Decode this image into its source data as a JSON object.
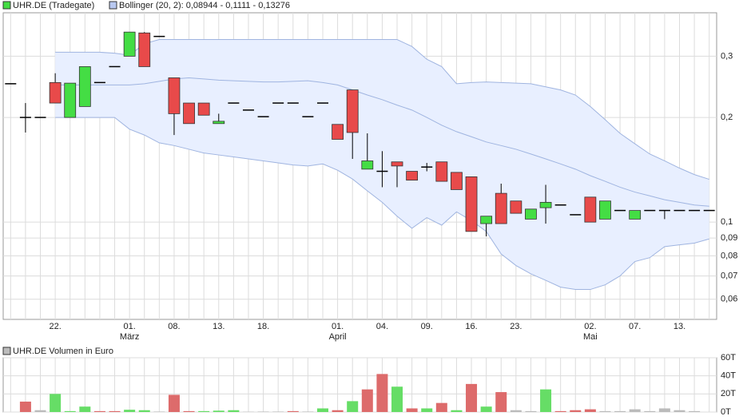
{
  "chart_data": {
    "type": "candlestick",
    "legend": [
      "UHR.DE (Tradegate)",
      "Bollinger (20, 2): 0,08944 - 0,1111 - 0,13276"
    ],
    "up_color": "#44dd44",
    "down_color": "#e84a4a",
    "flat_color": "#000000",
    "band_fill": "#e8efff",
    "band_color": "#9fb4e0",
    "log_scale": true,
    "grid": true,
    "categories": [
      null,
      null,
      null,
      "22.",
      null,
      null,
      null,
      null,
      "01.",
      null,
      null,
      "08.",
      null,
      null,
      "13.",
      null,
      null,
      "18.",
      null,
      null,
      null,
      null,
      "01.",
      null,
      null,
      "04.",
      null,
      null,
      "09.",
      null,
      null,
      "16.",
      null,
      null,
      "23.",
      null,
      null,
      null,
      null,
      "02.",
      null,
      null,
      "07.",
      null,
      null,
      "13.",
      null,
      null
    ],
    "months": [
      null,
      null,
      null,
      null,
      null,
      null,
      null,
      null,
      "März",
      null,
      null,
      null,
      null,
      null,
      null,
      null,
      null,
      null,
      null,
      null,
      null,
      null,
      "April",
      null,
      null,
      null,
      null,
      null,
      null,
      null,
      null,
      null,
      null,
      null,
      null,
      null,
      null,
      null,
      null,
      "Mai",
      null,
      null,
      null,
      null,
      null,
      null,
      null,
      null
    ],
    "open": [
      0.25,
      0.2,
      0.2,
      0.252,
      0.2,
      0.215,
      0.252,
      0.28,
      0.3,
      0.35,
      0.342,
      0.26,
      0.22,
      0.22,
      0.192,
      0.22,
      0.21,
      0.201,
      0.22,
      0.22,
      0.201,
      0.22,
      0.191,
      0.24,
      0.142,
      0.14,
      0.149,
      0.14,
      0.144,
      0.149,
      0.139,
      0.135,
      0.099,
      0.121,
      0.115,
      0.102,
      0.11,
      0.112,
      0.105,
      0.118,
      0.102,
      0.108,
      0.102,
      0.108,
      0.108,
      0.108,
      0.108,
      0.108
    ],
    "high": [
      0.25,
      0.22,
      0.2,
      0.268,
      0.251,
      0.28,
      0.252,
      0.28,
      0.352,
      0.352,
      0.342,
      0.26,
      0.22,
      0.22,
      0.205,
      0.22,
      0.21,
      0.201,
      0.22,
      0.22,
      0.201,
      0.22,
      0.191,
      0.24,
      0.18,
      0.16,
      0.149,
      0.14,
      0.148,
      0.149,
      0.139,
      0.135,
      0.104,
      0.129,
      0.115,
      0.109,
      0.128,
      0.112,
      0.105,
      0.118,
      0.115,
      0.108,
      0.108,
      0.108,
      0.108,
      0.108,
      0.108,
      0.108
    ],
    "low": [
      0.25,
      0.181,
      0.2,
      0.22,
      0.2,
      0.215,
      0.252,
      0.28,
      0.3,
      0.28,
      0.342,
      0.178,
      0.192,
      0.203,
      0.192,
      0.22,
      0.21,
      0.201,
      0.22,
      0.22,
      0.201,
      0.22,
      0.173,
      0.152,
      0.142,
      0.126,
      0.126,
      0.132,
      0.14,
      0.131,
      0.124,
      0.094,
      0.091,
      0.099,
      0.106,
      0.102,
      0.099,
      0.112,
      0.105,
      0.1,
      0.102,
      0.108,
      0.102,
      0.108,
      0.102,
      0.108,
      0.108,
      0.108
    ],
    "close": [
      0.25,
      0.2,
      0.2,
      0.22,
      0.251,
      0.28,
      0.252,
      0.28,
      0.352,
      0.28,
      0.342,
      0.205,
      0.192,
      0.203,
      0.195,
      0.22,
      0.21,
      0.201,
      0.22,
      0.22,
      0.201,
      0.22,
      0.173,
      0.181,
      0.15,
      0.14,
      0.145,
      0.132,
      0.144,
      0.131,
      0.124,
      0.094,
      0.104,
      0.099,
      0.106,
      0.109,
      0.114,
      0.112,
      0.105,
      0.1,
      0.115,
      0.108,
      0.108,
      0.108,
      0.108,
      0.108,
      0.108,
      0.108
    ],
    "band_upper": [
      null,
      null,
      null,
      0.308,
      0.308,
      0.308,
      0.308,
      0.306,
      0.302,
      0.326,
      0.335,
      0.335,
      0.335,
      0.335,
      0.335,
      0.335,
      0.335,
      0.335,
      0.335,
      0.335,
      0.335,
      0.335,
      0.335,
      0.335,
      0.335,
      0.335,
      0.335,
      0.32,
      0.294,
      0.28,
      0.25,
      0.252,
      0.253,
      0.252,
      0.251,
      0.25,
      0.245,
      0.24,
      0.232,
      0.215,
      0.197,
      0.18,
      0.168,
      0.157,
      0.15,
      0.143,
      0.137,
      0.13276
    ],
    "band_middle": [
      null,
      null,
      null,
      0.248,
      0.248,
      0.248,
      0.248,
      0.248,
      0.248,
      0.25,
      0.254,
      0.258,
      0.26,
      0.258,
      0.256,
      0.255,
      0.254,
      0.253,
      0.253,
      0.254,
      0.255,
      0.252,
      0.248,
      0.24,
      0.232,
      0.225,
      0.217,
      0.21,
      0.2,
      0.19,
      0.182,
      0.176,
      0.17,
      0.166,
      0.162,
      0.157,
      0.152,
      0.147,
      0.142,
      0.136,
      0.131,
      0.126,
      0.122,
      0.119,
      0.116,
      0.114,
      0.112,
      0.1111
    ],
    "band_lower": [
      null,
      null,
      null,
      0.2,
      0.2,
      0.2,
      0.2,
      0.2,
      0.185,
      0.178,
      0.169,
      0.166,
      0.162,
      0.158,
      0.156,
      0.154,
      0.152,
      0.15,
      0.148,
      0.146,
      0.145,
      0.147,
      0.141,
      0.133,
      0.123,
      0.114,
      0.104,
      0.096,
      0.103,
      0.098,
      0.107,
      0.101,
      0.094,
      0.081,
      0.075,
      0.071,
      0.068,
      0.065,
      0.064,
      0.064,
      0.066,
      0.07,
      0.077,
      0.079,
      0.085,
      0.086,
      0.087,
      0.08944
    ],
    "ylim": [
      0.0525,
      0.4
    ],
    "yticks": [
      {
        "value": 0.06,
        "label": "0,06"
      },
      {
        "value": 0.07,
        "label": "0,07"
      },
      {
        "value": 0.08,
        "label": "0,08"
      },
      {
        "value": 0.09,
        "label": "0,09"
      },
      {
        "value": 0.1,
        "label": "0,1"
      },
      {
        "value": 0.2,
        "label": "0,2"
      },
      {
        "value": 0.3,
        "label": "0,3"
      }
    ],
    "volume": {
      "title": "UHR.DE Volumen in Euro",
      "values": [
        null,
        11500,
        2000,
        20000,
        1000,
        6000,
        1000,
        1000,
        2500,
        2000,
        500,
        19000,
        1000,
        1000,
        1500,
        2000,
        300,
        500,
        500,
        1000,
        500,
        4000,
        2000,
        12000,
        25000,
        42000,
        28000,
        4000,
        4000,
        10000,
        2000,
        31000,
        6000,
        22000,
        2000,
        1000,
        25000,
        1000,
        2000,
        3000,
        1000,
        1000,
        3000,
        1000,
        4000,
        2000,
        1000,
        null
      ],
      "colors": [
        "#bbbbbb",
        "#dd6b6b",
        "#bbbbbb",
        "#66dd66",
        "#66dd66",
        "#66dd66",
        "#dd6b6b",
        "#dd6b6b",
        "#66dd66",
        "#66dd66",
        "#bbbbbb",
        "#dd6b6b",
        "#dd6b6b",
        "#66dd66",
        "#66dd66",
        "#66dd66",
        "#bbbbbb",
        "#bbbbbb",
        "#bbbbbb",
        "#dd6b6b",
        "#bbbbbb",
        "#66dd66",
        "#dd6b6b",
        "#66dd66",
        "#dd6b6b",
        "#dd6b6b",
        "#66dd66",
        "#dd6b6b",
        "#66dd66",
        "#dd6b6b",
        "#66dd66",
        "#dd6b6b",
        "#66dd66",
        "#dd6b6b",
        "#bbbbbb",
        "#bbbbbb",
        "#66dd66",
        "#dd6b6b",
        "#dd6b6b",
        "#dd6b6b",
        "#bbbbbb",
        "#bbbbbb",
        "#bbbbbb",
        "#bbbbbb",
        "#bbbbbb",
        "#bbbbbb",
        "#bbbbbb",
        "#bbbbbb"
      ],
      "legend_color": "#bbbbbb",
      "ylim": [
        0,
        60000
      ],
      "yticks": [
        {
          "value": 0,
          "label": "0T"
        },
        {
          "value": 20000,
          "label": "20T"
        },
        {
          "value": 40000,
          "label": "40T"
        },
        {
          "value": 60000,
          "label": "60T"
        }
      ]
    }
  }
}
